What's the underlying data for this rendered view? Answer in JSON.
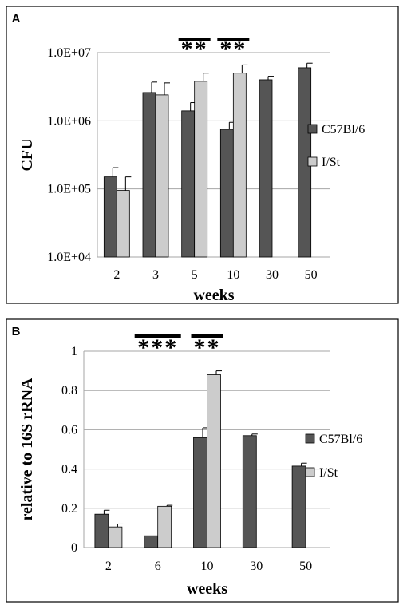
{
  "colors": {
    "series_1": "#555555",
    "series_2": "#cccccc",
    "bar_stroke": "#000000",
    "grid": "#a6a6a6",
    "frame": "#000000"
  },
  "chart_data": [
    {
      "panel": "A",
      "type": "bar",
      "ylabel": "CFU",
      "xlabel": "weeks",
      "yscale": "log",
      "ylim": [
        10000,
        10000000
      ],
      "yticks": [
        "1.0E+04",
        "1.0E+05",
        "1.0E+06",
        "1.0E+07"
      ],
      "grid": true,
      "legend_position": "right",
      "categories": [
        "2",
        "3",
        "5",
        "10",
        "30",
        "50"
      ],
      "series": [
        {
          "name": "C57Bl/6",
          "values": [
            150000,
            2600000,
            1400000,
            750000,
            4000000,
            6000000
          ],
          "errors": [
            55000,
            1100000,
            450000,
            200000,
            500000,
            1000000
          ]
        },
        {
          "name": "I/St",
          "values": [
            95000,
            2400000,
            3800000,
            5000000,
            null,
            null
          ],
          "errors": [
            55000,
            1200000,
            1200000,
            1600000,
            null,
            null
          ]
        }
      ],
      "annotations": [
        {
          "category": "5",
          "text": "**"
        },
        {
          "category": "10",
          "text": "**"
        }
      ]
    },
    {
      "panel": "B",
      "type": "bar",
      "ylabel": "relative to 16S rRNA",
      "xlabel": "weeks",
      "ylim": [
        0,
        1
      ],
      "yticks": [
        "0",
        "0.2",
        "0.4",
        "0.6",
        "0.8",
        "1"
      ],
      "grid": true,
      "legend_position": "right",
      "categories": [
        "2",
        "6",
        "10",
        "30",
        "50"
      ],
      "series": [
        {
          "name": "C57Bl/6",
          "values": [
            0.17,
            0.06,
            0.56,
            0.57,
            0.415
          ],
          "errors": [
            0.02,
            0.0,
            0.05,
            0.008,
            0.015
          ]
        },
        {
          "name": "I/St",
          "values": [
            0.105,
            0.21,
            0.88,
            null,
            null
          ],
          "errors": [
            0.015,
            0.005,
            0.02,
            null,
            null
          ]
        }
      ],
      "annotations": [
        {
          "category": "6",
          "text": "***"
        },
        {
          "category": "10",
          "text": "**"
        }
      ]
    }
  ]
}
